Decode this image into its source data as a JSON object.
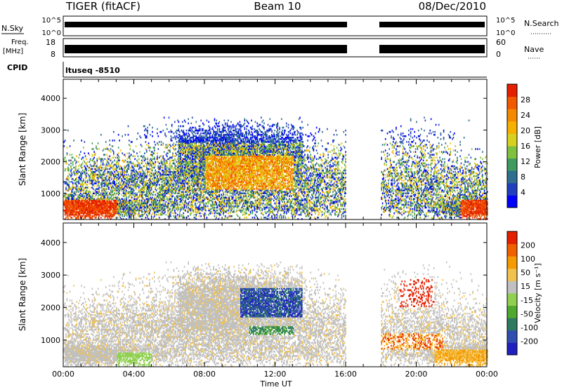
{
  "header": {
    "title": "TIGER (fitACF)",
    "beam": "Beam 10",
    "date": "08/Dec/2010"
  },
  "top_panels": {
    "nsky_label": "N.Sky",
    "nsearch_label": "N.Search",
    "noise_ticks": [
      "10^5",
      "10^0"
    ],
    "freq_label": "Freq.",
    "freq_unit": "[MHz]",
    "freq_ticks": [
      "18",
      "8"
    ],
    "nave_label": "Nave",
    "nave_ticks": [
      "60",
      "0"
    ],
    "cpid_label": "CPID",
    "cpid_value": "ltuseq -8510"
  },
  "chart_data": [
    {
      "type": "heatmap",
      "name": "power",
      "ylabel": "Slant Range [km]",
      "ylim": [
        180,
        4600
      ],
      "yticks": [
        "4000",
        "3000",
        "2000",
        "1000"
      ],
      "xlabel": "Time UT",
      "xticks": [
        "00:00",
        "04:00",
        "08:00",
        "12:00",
        "16:00",
        "20:00",
        "00:00"
      ],
      "data_gap_hours": [
        16.0,
        18.0
      ],
      "colorbar": {
        "label": "Power [dB]",
        "ticks": [
          "28",
          "24",
          "20",
          "16",
          "12",
          "8",
          "4"
        ],
        "colors": [
          "#0000ff",
          "#1f3fbf",
          "#2e6e8e",
          "#3e9a5e",
          "#7fc040",
          "#d8d020",
          "#f5b000",
          "#f58a00",
          "#f25a00",
          "#e42000"
        ]
      }
    },
    {
      "type": "heatmap",
      "name": "velocity",
      "ylabel": "Slant Range [km]",
      "ylim": [
        180,
        4600
      ],
      "yticks": [
        "4000",
        "3000",
        "2000",
        "1000"
      ],
      "xlabel": "Time UT",
      "xticks": [
        "00:00",
        "04:00",
        "08:00",
        "12:00",
        "16:00",
        "20:00",
        "00:00"
      ],
      "data_gap_hours": [
        16.0,
        18.0
      ],
      "colorbar": {
        "label": "Velocity [m s⁻¹]",
        "ticks": [
          "200",
          "100",
          "50",
          "15",
          "-15",
          "-50",
          "-100",
          "-200"
        ],
        "colors": [
          "#2020c0",
          "#2f4fb0",
          "#2e7a60",
          "#4fa830",
          "#90d050",
          "#c0c0c0",
          "#f2c24e",
          "#f59a00",
          "#f06000",
          "#e42000"
        ]
      }
    }
  ]
}
